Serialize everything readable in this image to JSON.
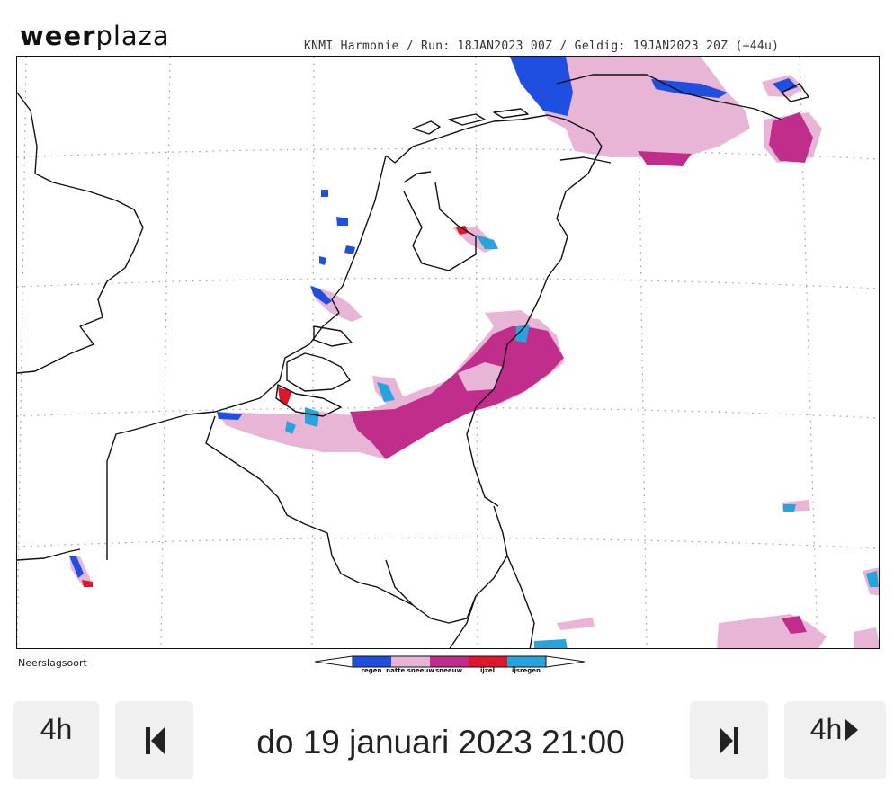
{
  "header": {
    "logo_text": "weerplaza",
    "model_info": "KNMI Harmonie / Run: 18JAN2023 00Z / Geldig: 19JAN2023 20Z (+44u)"
  },
  "map": {
    "caption": "Neerslagsoort",
    "legend": [
      {
        "label": "regen",
        "color": "#1f4fe0"
      },
      {
        "label": "natte sneeuw",
        "color": "#e9b5d6"
      },
      {
        "label": "sneeuw",
        "color": "#c02d8a"
      },
      {
        "label": "ijzel",
        "color": "#e0162c"
      },
      {
        "label": "ijsregen",
        "color": "#27a3dd"
      }
    ]
  },
  "controls": {
    "back_step_label": "4h",
    "datetime": "do 19 januari 2023 21:00",
    "forward_step_label": "4h"
  }
}
